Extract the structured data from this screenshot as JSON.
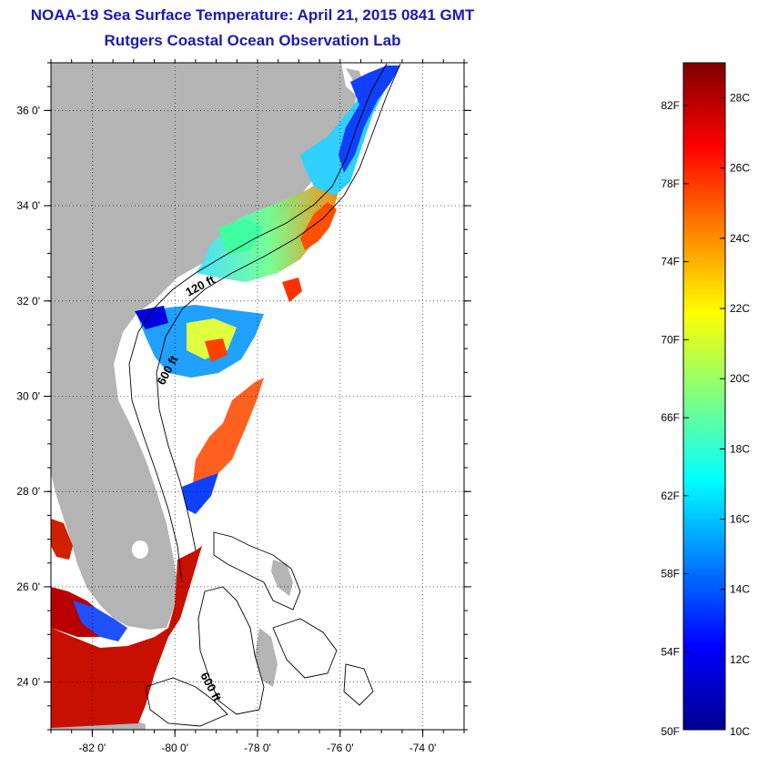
{
  "header": {
    "title": "NOAA-19 Sea Surface Temperature:  April 21, 2015 0841 GMT",
    "subtitle": "Rutgers Coastal Ocean Observation Lab"
  },
  "map": {
    "lat_range": [
      23,
      37
    ],
    "lon_range": [
      -83,
      -73
    ],
    "lat_ticks": [
      {
        "value": 24,
        "label": "24 0'"
      },
      {
        "value": 26,
        "label": "26 0'"
      },
      {
        "value": 28,
        "label": "28 0'"
      },
      {
        "value": 30,
        "label": "30 0'"
      },
      {
        "value": 32,
        "label": "32 0'"
      },
      {
        "value": 34,
        "label": "34 0'"
      },
      {
        "value": 36,
        "label": "36 0'"
      }
    ],
    "lon_ticks": [
      {
        "value": -82,
        "label": "-82 0'"
      },
      {
        "value": -80,
        "label": "-80 0'"
      },
      {
        "value": -78,
        "label": "-78 0'"
      },
      {
        "value": -76,
        "label": "-76 0'"
      },
      {
        "value": -74,
        "label": "-74 0'"
      }
    ],
    "contour_labels": [
      "120 ft",
      "600 ft",
      "600 ft"
    ],
    "colors": {
      "land": "#b4b4b4",
      "no_data": "#ffffff",
      "grid": "#000000"
    }
  },
  "colorbar": {
    "f_labels": [
      "50F",
      "54F",
      "58F",
      "62F",
      "66F",
      "70F",
      "74F",
      "78F",
      "82F"
    ],
    "c_labels": [
      "10C",
      "12C",
      "14C",
      "16C",
      "18C",
      "20C",
      "22C",
      "24C",
      "26C",
      "28C"
    ],
    "f_values": [
      50,
      54,
      58,
      62,
      66,
      70,
      74,
      78,
      82
    ],
    "c_values": [
      10,
      12,
      14,
      16,
      18,
      20,
      22,
      24,
      26,
      28
    ],
    "range_c": [
      10,
      29
    ],
    "palette": [
      "#00008f",
      "#0000ff",
      "#0080ff",
      "#00ffff",
      "#80ff80",
      "#ffff00",
      "#ff8000",
      "#ff0000",
      "#800000"
    ]
  }
}
